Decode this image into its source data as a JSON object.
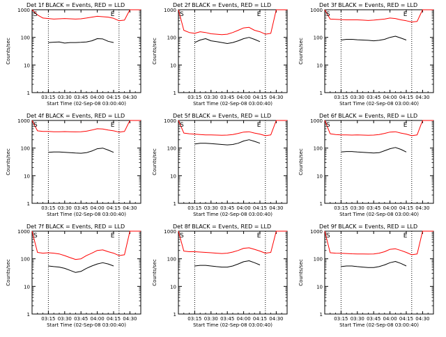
{
  "figure": {
    "y_ticks": [
      "1",
      "10",
      "100",
      "1000"
    ],
    "x_ticks": [
      "03:15",
      "03:30",
      "03:45",
      "04:00",
      "04:15",
      "04:30"
    ],
    "marker_start": "S",
    "marker_end": "E"
  },
  "chart_data": [
    {
      "type": "line",
      "title": "Det 1f BLACK = Events, RED = LLD",
      "xlabel": "Start Time (02-Sep-08 03:00:40)",
      "ylabel": "Counts/sec",
      "yscale": "log",
      "ylim": [
        1,
        1000
      ],
      "xlim": [
        "03:00",
        "04:40"
      ],
      "x": [
        "03:00",
        "03:05",
        "03:10",
        "03:15",
        "03:20",
        "03:25",
        "03:30",
        "03:35",
        "03:40",
        "03:45",
        "03:50",
        "03:55",
        "04:00",
        "04:05",
        "04:10",
        "04:15",
        "04:20",
        "04:25",
        "04:30",
        "04:35",
        "04:40"
      ],
      "series": [
        {
          "name": "Events",
          "color": "#000000",
          "values": [
            null,
            null,
            null,
            65,
            67,
            68,
            62,
            65,
            65,
            66,
            68,
            75,
            90,
            88,
            72,
            65,
            null,
            null,
            null,
            null,
            null
          ]
        },
        {
          "name": "LLD",
          "color": "#ff0000",
          "values": [
            1000,
            650,
            500,
            480,
            460,
            470,
            480,
            470,
            460,
            470,
            500,
            540,
            580,
            560,
            540,
            490,
            400,
            420,
            1000,
            1000,
            1000
          ]
        }
      ],
      "vlines": [
        "03:15",
        "04:20"
      ]
    },
    {
      "type": "line",
      "title": "Det 2f BLACK = Events, RED = LLD",
      "xlabel": "Start Time (02-Sep-08 03:00:40)",
      "ylabel": "Counts/sec",
      "yscale": "log",
      "ylim": [
        1,
        1000
      ],
      "xlim": [
        "03:00",
        "04:40"
      ],
      "x": [
        "03:00",
        "03:05",
        "03:10",
        "03:15",
        "03:20",
        "03:25",
        "03:30",
        "03:35",
        "03:40",
        "03:45",
        "03:50",
        "03:55",
        "04:00",
        "04:05",
        "04:10",
        "04:15",
        "04:20",
        "04:25",
        "04:30",
        "04:35",
        "04:40"
      ],
      "series": [
        {
          "name": "Events",
          "color": "#000000",
          "values": [
            null,
            null,
            null,
            65,
            80,
            90,
            75,
            70,
            65,
            60,
            65,
            75,
            90,
            100,
            85,
            70,
            null,
            null,
            null,
            null,
            null
          ]
        },
        {
          "name": "LLD",
          "color": "#ff0000",
          "values": [
            1000,
            180,
            150,
            140,
            160,
            150,
            135,
            130,
            125,
            130,
            150,
            180,
            220,
            230,
            180,
            160,
            130,
            140,
            1000,
            1000,
            1000
          ]
        }
      ],
      "vlines": [
        "03:15",
        "04:20"
      ]
    },
    {
      "type": "line",
      "title": "Det 3f BLACK = Events, RED = LLD",
      "xlabel": "Start Time (02-Sep-08 03:00:40)",
      "ylabel": "Counts/sec",
      "yscale": "log",
      "ylim": [
        1,
        1000
      ],
      "xlim": [
        "03:00",
        "04:40"
      ],
      "x": [
        "03:00",
        "03:05",
        "03:10",
        "03:15",
        "03:20",
        "03:25",
        "03:30",
        "03:35",
        "03:40",
        "03:45",
        "03:50",
        "03:55",
        "04:00",
        "04:05",
        "04:10",
        "04:15",
        "04:20",
        "04:25",
        "04:30",
        "04:35",
        "04:40"
      ],
      "series": [
        {
          "name": "Events",
          "color": "#000000",
          "values": [
            null,
            null,
            null,
            80,
            85,
            85,
            82,
            80,
            78,
            75,
            78,
            85,
            100,
            110,
            95,
            80,
            null,
            null,
            null,
            null,
            null
          ]
        },
        {
          "name": "LLD",
          "color": "#ff0000",
          "values": [
            1000,
            460,
            450,
            440,
            430,
            430,
            430,
            420,
            410,
            420,
            440,
            460,
            500,
            480,
            430,
            400,
            360,
            380,
            1000,
            1000,
            1000
          ]
        }
      ],
      "vlines": [
        "03:15",
        "04:20"
      ]
    },
    {
      "type": "line",
      "title": "Det 4f BLACK = Events, RED = LLD",
      "xlabel": "Start Time (02-Sep-08 03:00:40)",
      "ylabel": "Counts/sec",
      "yscale": "log",
      "ylim": [
        1,
        1000
      ],
      "xlim": [
        "03:00",
        "04:40"
      ],
      "x": [
        "03:00",
        "03:05",
        "03:10",
        "03:15",
        "03:20",
        "03:25",
        "03:30",
        "03:35",
        "03:40",
        "03:45",
        "03:50",
        "03:55",
        "04:00",
        "04:05",
        "04:10",
        "04:15",
        "04:20",
        "04:25",
        "04:30",
        "04:35",
        "04:40"
      ],
      "series": [
        {
          "name": "Events",
          "color": "#000000",
          "values": [
            null,
            null,
            null,
            70,
            72,
            72,
            70,
            68,
            66,
            65,
            68,
            78,
            95,
            100,
            85,
            70,
            null,
            null,
            null,
            null,
            null
          ]
        },
        {
          "name": "LLD",
          "color": "#ff0000",
          "values": [
            1000,
            420,
            400,
            400,
            390,
            390,
            395,
            390,
            385,
            390,
            410,
            450,
            500,
            490,
            450,
            420,
            380,
            400,
            1000,
            1000,
            1000
          ]
        }
      ],
      "vlines": [
        "03:15",
        "04:20"
      ]
    },
    {
      "type": "line",
      "title": "Det 5f BLACK = Events, RED = LLD",
      "xlabel": "Start Time (02-Sep-08 03:00:40)",
      "ylabel": "Counts/sec",
      "yscale": "log",
      "ylim": [
        1,
        1000
      ],
      "xlim": [
        "03:00",
        "04:40"
      ],
      "x": [
        "03:00",
        "03:05",
        "03:10",
        "03:15",
        "03:20",
        "03:25",
        "03:30",
        "03:35",
        "03:40",
        "03:45",
        "03:50",
        "03:55",
        "04:00",
        "04:05",
        "04:10",
        "04:15",
        "04:20",
        "04:25",
        "04:30",
        "04:35",
        "04:40"
      ],
      "series": [
        {
          "name": "Events",
          "color": "#000000",
          "values": [
            null,
            null,
            null,
            140,
            150,
            150,
            145,
            140,
            135,
            130,
            135,
            150,
            180,
            200,
            175,
            150,
            null,
            null,
            null,
            null,
            null
          ]
        },
        {
          "name": "LLD",
          "color": "#ff0000",
          "values": [
            1000,
            350,
            330,
            320,
            310,
            300,
            300,
            295,
            290,
            295,
            310,
            340,
            380,
            390,
            350,
            320,
            280,
            300,
            1000,
            1000,
            1000
          ]
        }
      ],
      "vlines": [
        "03:15",
        "04:20"
      ]
    },
    {
      "type": "line",
      "title": "Det 6f BLACK = Events, RED = LLD",
      "xlabel": "Start Time (02-Sep-08 03:00:40)",
      "ylabel": "Counts/sec",
      "yscale": "log",
      "ylim": [
        1,
        1000
      ],
      "xlim": [
        "03:00",
        "04:40"
      ],
      "x": [
        "03:00",
        "03:05",
        "03:10",
        "03:15",
        "03:20",
        "03:25",
        "03:30",
        "03:35",
        "03:40",
        "03:45",
        "03:50",
        "03:55",
        "04:00",
        "04:05",
        "04:10",
        "04:15",
        "04:20",
        "04:25",
        "04:30",
        "04:35",
        "04:40"
      ],
      "series": [
        {
          "name": "Events",
          "color": "#000000",
          "values": [
            null,
            null,
            null,
            72,
            75,
            75,
            72,
            70,
            68,
            66,
            68,
            80,
            95,
            105,
            90,
            72,
            null,
            null,
            null,
            null,
            null
          ]
        },
        {
          "name": "LLD",
          "color": "#ff0000",
          "values": [
            1000,
            330,
            310,
            300,
            300,
            295,
            300,
            295,
            290,
            295,
            310,
            340,
            380,
            390,
            350,
            320,
            280,
            300,
            1000,
            1000,
            1000
          ]
        }
      ],
      "vlines": [
        "03:15",
        "04:20"
      ]
    },
    {
      "type": "line",
      "title": "Det 7f BLACK = Events, RED = LLD",
      "xlabel": "Start Time (02-Sep-08 03:00:40)",
      "ylabel": "Counts/sec",
      "yscale": "log",
      "ylim": [
        1,
        1000
      ],
      "xlim": [
        "03:00",
        "04:40"
      ],
      "x": [
        "03:00",
        "03:05",
        "03:10",
        "03:15",
        "03:20",
        "03:25",
        "03:30",
        "03:35",
        "03:40",
        "03:45",
        "03:50",
        "03:55",
        "04:00",
        "04:05",
        "04:10",
        "04:15",
        "04:20",
        "04:25",
        "04:30",
        "04:35",
        "04:40"
      ],
      "series": [
        {
          "name": "Events",
          "color": "#000000",
          "values": [
            null,
            null,
            null,
            55,
            52,
            50,
            45,
            38,
            32,
            35,
            45,
            55,
            65,
            72,
            65,
            55,
            null,
            null,
            null,
            null,
            null
          ]
        },
        {
          "name": "LLD",
          "color": "#ff0000",
          "values": [
            1000,
            170,
            160,
            165,
            160,
            150,
            130,
            110,
            95,
            100,
            130,
            160,
            200,
            210,
            180,
            160,
            130,
            140,
            1000,
            1000,
            1000
          ]
        }
      ],
      "vlines": [
        "03:15",
        "04:20"
      ]
    },
    {
      "type": "line",
      "title": "Det 8f BLACK = Events, RED = LLD",
      "xlabel": "Start Time (02-Sep-08 03:00:40)",
      "ylabel": "Counts/sec",
      "yscale": "log",
      "ylim": [
        1,
        1000
      ],
      "xlim": [
        "03:00",
        "04:40"
      ],
      "x": [
        "03:00",
        "03:05",
        "03:10",
        "03:15",
        "03:20",
        "03:25",
        "03:30",
        "03:35",
        "03:40",
        "03:45",
        "03:50",
        "03:55",
        "04:00",
        "04:05",
        "04:10",
        "04:15",
        "04:20",
        "04:25",
        "04:30",
        "04:35",
        "04:40"
      ],
      "series": [
        {
          "name": "Events",
          "color": "#000000",
          "values": [
            null,
            null,
            null,
            55,
            58,
            58,
            55,
            52,
            50,
            50,
            55,
            65,
            78,
            85,
            72,
            60,
            null,
            null,
            null,
            null,
            null
          ]
        },
        {
          "name": "LLD",
          "color": "#ff0000",
          "values": [
            1000,
            190,
            180,
            180,
            175,
            170,
            165,
            160,
            155,
            160,
            175,
            200,
            240,
            250,
            220,
            190,
            160,
            170,
            1000,
            1000,
            1000
          ]
        }
      ],
      "vlines": [
        "03:15",
        "04:20"
      ]
    },
    {
      "type": "line",
      "title": "Det 9f BLACK = Events, RED = LLD",
      "xlabel": "Start Time (02-Sep-08 03:00:40)",
      "ylabel": "Counts/sec",
      "yscale": "log",
      "ylim": [
        1,
        1000
      ],
      "xlim": [
        "03:00",
        "04:40"
      ],
      "x": [
        "03:00",
        "03:05",
        "03:10",
        "03:15",
        "03:20",
        "03:25",
        "03:30",
        "03:35",
        "03:40",
        "03:45",
        "03:50",
        "03:55",
        "04:00",
        "04:05",
        "04:10",
        "04:15",
        "04:20",
        "04:25",
        "04:30",
        "04:35",
        "04:40"
      ],
      "series": [
        {
          "name": "Events",
          "color": "#000000",
          "values": [
            null,
            null,
            null,
            52,
            55,
            55,
            52,
            50,
            48,
            48,
            52,
            60,
            72,
            80,
            68,
            55,
            null,
            null,
            null,
            null,
            null
          ]
        },
        {
          "name": "LLD",
          "color": "#ff0000",
          "values": [
            1000,
            165,
            160,
            158,
            155,
            152,
            150,
            150,
            148,
            150,
            160,
            180,
            220,
            230,
            200,
            170,
            140,
            150,
            1000,
            1000,
            1000
          ]
        }
      ],
      "vlines": [
        "03:15",
        "04:20"
      ]
    }
  ]
}
